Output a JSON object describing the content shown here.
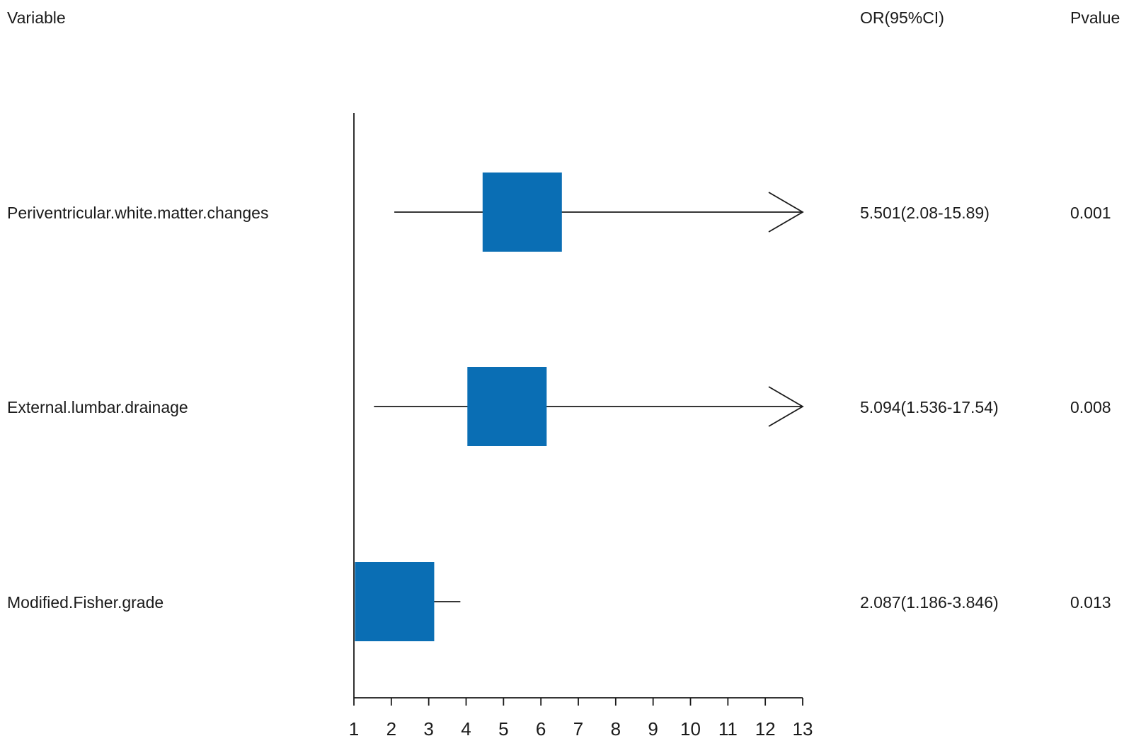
{
  "chart_data": {
    "type": "forest",
    "headers": {
      "variable": "Variable",
      "or_ci": "OR(95%CI)",
      "pvalue": "Pvalue"
    },
    "rows": [
      {
        "variable": "Periventricular.white.matter.changes",
        "or": 5.501,
        "ci_low": 2.08,
        "ci_high": 15.89,
        "or_label": "5.501(2.08-15.89)",
        "pvalue": "0.001"
      },
      {
        "variable": "External.lumbar.drainage",
        "or": 5.094,
        "ci_low": 1.536,
        "ci_high": 17.54,
        "or_label": "5.094(1.536-17.54)",
        "pvalue": "0.008"
      },
      {
        "variable": "Modified.Fisher.grade",
        "or": 2.087,
        "ci_low": 1.186,
        "ci_high": 3.846,
        "or_label": "2.087(1.186-3.846)",
        "pvalue": "0.013"
      }
    ],
    "xlim": [
      1,
      13
    ],
    "xticks": [
      1,
      2,
      3,
      4,
      5,
      6,
      7,
      8,
      9,
      10,
      11,
      12,
      13
    ],
    "box_color": "#0a6eb4",
    "line_color": "#1a1a1a"
  }
}
